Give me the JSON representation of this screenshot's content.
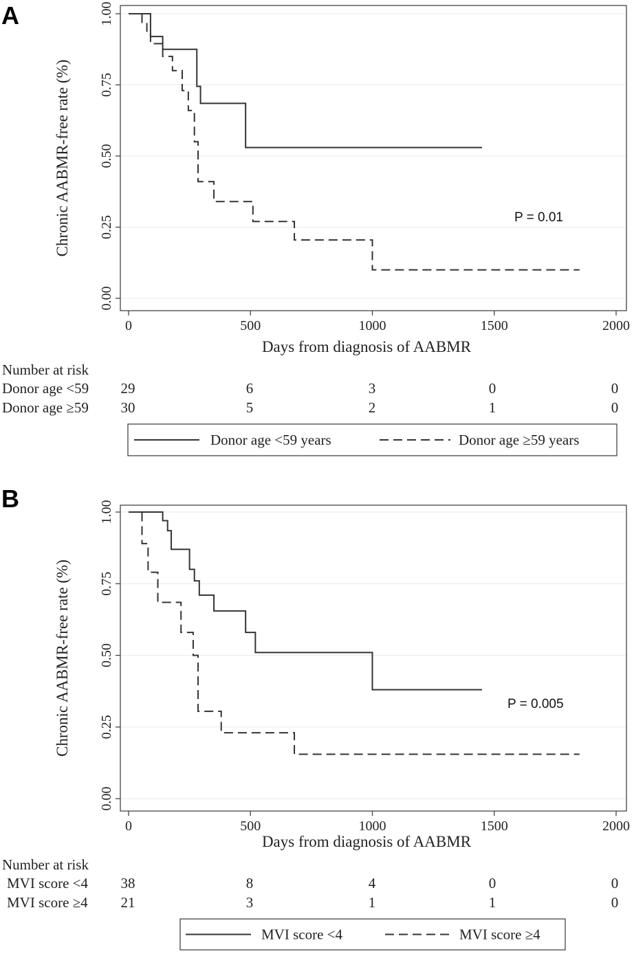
{
  "chart_data": [
    {
      "type": "line",
      "panel_label": "A",
      "xlabel": "Days from diagnosis of AABMR",
      "ylabel": "Chronic AABMR-free rate (%)",
      "xlim": [
        0,
        2000
      ],
      "ylim": [
        0,
        1
      ],
      "xticks": [
        "0",
        "500",
        "1000",
        "1500",
        "2000"
      ],
      "yticks": [
        "0.00",
        "0.25",
        "0.50",
        "0.75",
        "1.00"
      ],
      "grid": "horizontal",
      "annotation": "P = 0.01",
      "series": [
        {
          "name": "Donor age <59 years",
          "linestyle": "solid",
          "x": [
            0,
            90,
            140,
            280,
            295,
            480,
            1450
          ],
          "y": [
            1.0,
            0.92,
            0.875,
            0.745,
            0.685,
            0.53,
            0.53
          ]
        },
        {
          "name": "Donor age ≥59 years",
          "linestyle": "dashed",
          "x": [
            0,
            55,
            75,
            90,
            140,
            180,
            220,
            245,
            270,
            285,
            350,
            510,
            680,
            1000,
            1850
          ],
          "y": [
            1.0,
            0.965,
            0.93,
            0.895,
            0.85,
            0.8,
            0.73,
            0.66,
            0.55,
            0.41,
            0.34,
            0.27,
            0.205,
            0.1,
            0.1
          ]
        }
      ],
      "risk_table": {
        "title": "Number at risk",
        "rows": [
          {
            "label": "Donor age <59",
            "values": [
              "29",
              "6",
              "3",
              "0",
              "0"
            ]
          },
          {
            "label": "Donor age ≥59",
            "values": [
              "30",
              "5",
              "2",
              "1",
              "0"
            ]
          }
        ]
      },
      "legend": {
        "placement": "bottom",
        "entries": [
          "Donor age <59 years",
          "Donor age ≥59 years"
        ]
      }
    },
    {
      "type": "line",
      "panel_label": "B",
      "xlabel": "Days from diagnosis of AABMR",
      "ylabel": "Chronic AABMR-free rate (%)",
      "xlim": [
        0,
        2000
      ],
      "ylim": [
        0,
        1
      ],
      "xticks": [
        "0",
        "500",
        "1000",
        "1500",
        "2000"
      ],
      "yticks": [
        "0.00",
        "0.25",
        "0.50",
        "0.75",
        "1.00"
      ],
      "grid": "horizontal",
      "annotation": "P = 0.005",
      "series": [
        {
          "name": "MVI score <4",
          "linestyle": "solid",
          "x": [
            0,
            140,
            160,
            175,
            250,
            270,
            290,
            350,
            480,
            520,
            1000,
            1450
          ],
          "y": [
            1.0,
            0.97,
            0.935,
            0.87,
            0.8,
            0.76,
            0.71,
            0.655,
            0.58,
            0.51,
            0.38,
            0.38
          ]
        },
        {
          "name": "MVI score ≥4",
          "linestyle": "dashed",
          "x": [
            0,
            55,
            80,
            120,
            215,
            265,
            285,
            380,
            680,
            1850
          ],
          "y": [
            1.0,
            0.89,
            0.79,
            0.685,
            0.58,
            0.5,
            0.305,
            0.23,
            0.155,
            0.155
          ]
        }
      ],
      "risk_table": {
        "title": "Number at risk",
        "rows": [
          {
            "label": "MVI score <4",
            "values": [
              "38",
              "8",
              "4",
              "0",
              "0"
            ]
          },
          {
            "label": "MVI score ≥4",
            "values": [
              "21",
              "3",
              "1",
              "1",
              "0"
            ]
          }
        ]
      },
      "legend": {
        "placement": "bottom",
        "entries": [
          "MVI score <4",
          "MVI score ≥4"
        ]
      }
    }
  ]
}
